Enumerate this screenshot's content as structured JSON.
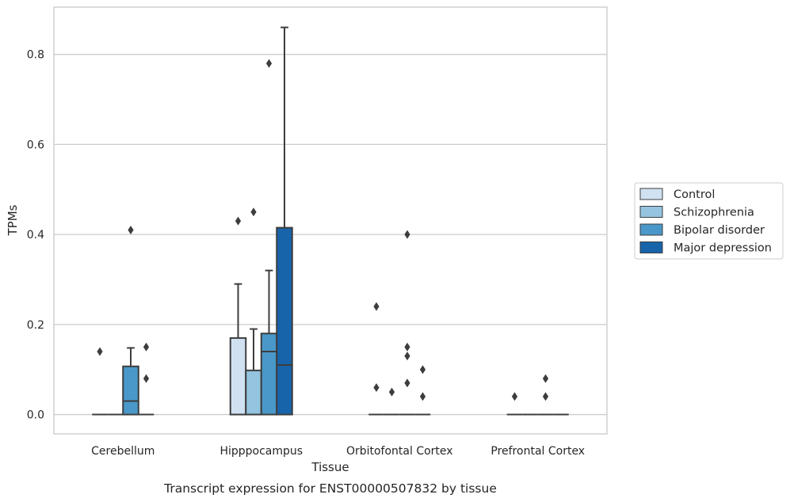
{
  "chart_data": {
    "type": "box",
    "caption": "Transcript expression for ENST00000507832 by tissue",
    "xlabel": "Tissue",
    "ylabel": "TPMs",
    "ylim": [
      -0.043,
      0.905
    ],
    "yticks": [
      0.0,
      0.2,
      0.4,
      0.6,
      0.8
    ],
    "ytick_labels": [
      "0.0",
      "0.2",
      "0.4",
      "0.6",
      "0.8"
    ],
    "grid": "horizontal",
    "legend_position": "right",
    "categories": [
      "Cerebellum",
      "Hipppocampus",
      "Orbitofontal Cortex",
      "Prefrontal Cortex"
    ],
    "series": [
      {
        "name": "Control",
        "color": "#d0e1f2",
        "boxes": [
          {
            "q1": 0.0,
            "median": 0.0,
            "q3": 0.0,
            "whislo": 0.0,
            "whishi": 0.0,
            "fliers": [
              0.14
            ]
          },
          {
            "q1": 0.0,
            "median": 0.0,
            "q3": 0.17,
            "whislo": 0.0,
            "whishi": 0.29,
            "fliers": [
              0.43
            ]
          },
          {
            "q1": 0.0,
            "median": 0.0,
            "q3": 0.0,
            "whislo": 0.0,
            "whishi": 0.0,
            "fliers": [
              0.24,
              0.06
            ]
          },
          {
            "q1": 0.0,
            "median": 0.0,
            "q3": 0.0,
            "whislo": 0.0,
            "whishi": 0.0,
            "fliers": [
              0.04
            ]
          }
        ]
      },
      {
        "name": "Schizophrenia",
        "color": "#94c4df",
        "boxes": [
          {
            "q1": 0.0,
            "median": 0.0,
            "q3": 0.0,
            "whislo": 0.0,
            "whishi": 0.0,
            "fliers": []
          },
          {
            "q1": 0.0,
            "median": 0.0,
            "q3": 0.098,
            "whislo": 0.0,
            "whishi": 0.19,
            "fliers": [
              0.45
            ]
          },
          {
            "q1": 0.0,
            "median": 0.0,
            "q3": 0.0,
            "whislo": 0.0,
            "whishi": 0.0,
            "fliers": [
              0.05
            ]
          },
          {
            "q1": 0.0,
            "median": 0.0,
            "q3": 0.0,
            "whislo": 0.0,
            "whishi": 0.0,
            "fliers": []
          }
        ]
      },
      {
        "name": "Bipolar disorder",
        "color": "#4a98c9",
        "boxes": [
          {
            "q1": 0.0,
            "median": 0.03,
            "q3": 0.107,
            "whislo": 0.0,
            "whishi": 0.148,
            "fliers": [
              0.41
            ]
          },
          {
            "q1": 0.0,
            "median": 0.14,
            "q3": 0.18,
            "whislo": 0.0,
            "whishi": 0.32,
            "fliers": [
              0.78
            ]
          },
          {
            "q1": 0.0,
            "median": 0.0,
            "q3": 0.0,
            "whislo": 0.0,
            "whishi": 0.0,
            "fliers": [
              0.4,
              0.15,
              0.13,
              0.07
            ]
          },
          {
            "q1": 0.0,
            "median": 0.0,
            "q3": 0.0,
            "whislo": 0.0,
            "whishi": 0.0,
            "fliers": [
              0.08,
              0.04
            ]
          }
        ]
      },
      {
        "name": "Major depression",
        "color": "#1764ab",
        "boxes": [
          {
            "q1": 0.0,
            "median": 0.0,
            "q3": 0.0,
            "whislo": 0.0,
            "whishi": 0.0,
            "fliers": [
              0.15,
              0.08
            ]
          },
          {
            "q1": 0.0,
            "median": 0.11,
            "q3": 0.415,
            "whislo": 0.0,
            "whishi": 0.86,
            "fliers": []
          },
          {
            "q1": 0.0,
            "median": 0.0,
            "q3": 0.0,
            "whislo": 0.0,
            "whishi": 0.0,
            "fliers": [
              0.1,
              0.04
            ]
          },
          {
            "q1": 0.0,
            "median": 0.0,
            "q3": 0.0,
            "whislo": 0.0,
            "whishi": 0.0,
            "fliers": []
          }
        ]
      }
    ]
  }
}
